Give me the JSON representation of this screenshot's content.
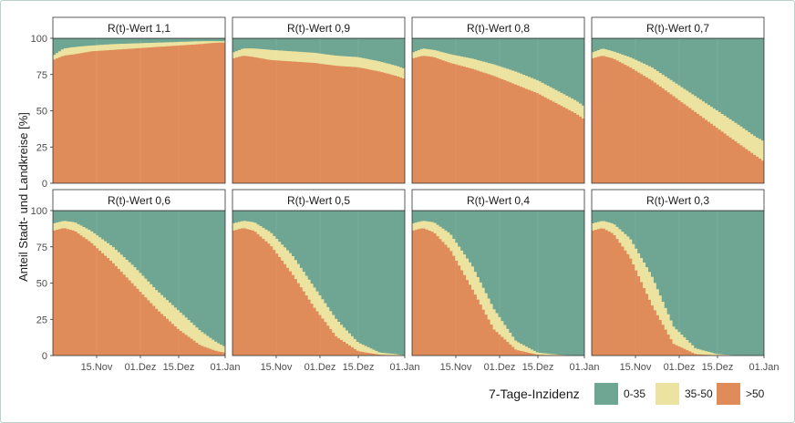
{
  "chart_data": {
    "type": "area",
    "ylabel": "Anteil Stadt- und Landkreise [%]",
    "ylim": [
      0,
      100
    ],
    "yticks": [
      "0",
      "25",
      "50",
      "75",
      "100"
    ],
    "xticks": [
      "15.Nov",
      "01.Dez",
      "15.Dez",
      "01.Jan"
    ],
    "x_range_days": [
      0,
      63
    ],
    "x_tick_days": [
      16,
      32,
      46,
      63
    ],
    "legend": {
      "title": "7-Tage-Inzidenz",
      "entries": [
        {
          "label": "0-35",
          "color": "#6fa593"
        },
        {
          "label": "35-50",
          "color": "#ebe39f"
        },
        {
          "label": ">50",
          "color": "#df8c5a"
        }
      ]
    },
    "colors": {
      "low": "#6fa593",
      "mid": "#ebe39f",
      "high": "#df8c5a",
      "strip": "#ffffff",
      "grid": "#e6e6e6",
      "border": "#333333"
    },
    "panels": [
      {
        "title": "R(t)-Wert 1,1",
        "days": [
          0,
          4,
          8,
          14,
          22,
          30,
          38,
          46,
          54,
          60,
          63
        ],
        "high_gt50": [
          85,
          88,
          89,
          91,
          92,
          93,
          94,
          95,
          96,
          97,
          97
        ],
        "upper_gt35": [
          88,
          93,
          94,
          95,
          96,
          96.5,
          97,
          97.5,
          98,
          98,
          98
        ]
      },
      {
        "title": "R(t)-Wert 0,9",
        "days": [
          0,
          4,
          8,
          14,
          22,
          30,
          38,
          46,
          54,
          60,
          63
        ],
        "high_gt50": [
          86,
          88,
          87,
          85,
          84,
          83,
          81,
          80,
          77,
          74,
          72
        ],
        "upper_gt35": [
          90,
          93,
          93,
          92,
          91,
          90,
          88,
          87,
          84,
          81,
          79
        ]
      },
      {
        "title": "R(t)-Wert 0,8",
        "days": [
          0,
          4,
          8,
          14,
          22,
          30,
          38,
          46,
          54,
          60,
          63
        ],
        "high_gt50": [
          86,
          88,
          87,
          83,
          79,
          74,
          68,
          62,
          54,
          48,
          44
        ],
        "upper_gt35": [
          90,
          93,
          92,
          89,
          86,
          82,
          77,
          71,
          63,
          57,
          53
        ]
      },
      {
        "title": "R(t)-Wert 0,7",
        "days": [
          0,
          4,
          8,
          14,
          22,
          30,
          38,
          46,
          54,
          60,
          63
        ],
        "high_gt50": [
          86,
          88,
          86,
          80,
          71,
          60,
          49,
          38,
          27,
          19,
          15
        ],
        "upper_gt35": [
          90,
          93,
          91,
          87,
          80,
          70,
          60,
          50,
          40,
          32,
          29
        ]
      },
      {
        "title": "R(t)-Wert 0,6",
        "days": [
          0,
          4,
          8,
          14,
          22,
          30,
          38,
          46,
          54,
          60,
          63
        ],
        "high_gt50": [
          86,
          88,
          86,
          78,
          64,
          48,
          32,
          18,
          7,
          3,
          2
        ],
        "upper_gt35": [
          91,
          93,
          92,
          86,
          75,
          61,
          45,
          31,
          17,
          9,
          6
        ]
      },
      {
        "title": "R(t)-Wert 0,5",
        "days": [
          0,
          4,
          8,
          14,
          22,
          30,
          38,
          46,
          54,
          60,
          63
        ],
        "high_gt50": [
          86,
          88,
          86,
          76,
          56,
          33,
          13,
          3,
          0.5,
          0,
          0
        ],
        "upper_gt35": [
          91,
          93,
          92,
          85,
          69,
          47,
          25,
          9,
          2,
          1,
          0
        ]
      },
      {
        "title": "R(t)-Wert 0,4",
        "days": [
          0,
          4,
          8,
          14,
          22,
          30,
          38,
          46,
          54,
          60,
          63
        ],
        "high_gt50": [
          86,
          88,
          85,
          73,
          46,
          18,
          4,
          0.5,
          0,
          0,
          0
        ],
        "upper_gt35": [
          91,
          93,
          92,
          84,
          62,
          32,
          10,
          2,
          0.5,
          0,
          0
        ]
      },
      {
        "title": "R(t)-Wert 0,3",
        "days": [
          0,
          4,
          8,
          14,
          22,
          30,
          38,
          46,
          54,
          60,
          63
        ],
        "high_gt50": [
          86,
          88,
          84,
          68,
          35,
          8,
          1,
          0,
          0,
          0,
          0
        ],
        "upper_gt35": [
          91,
          93,
          91,
          81,
          55,
          20,
          5,
          1,
          0,
          0,
          0
        ]
      }
    ]
  }
}
